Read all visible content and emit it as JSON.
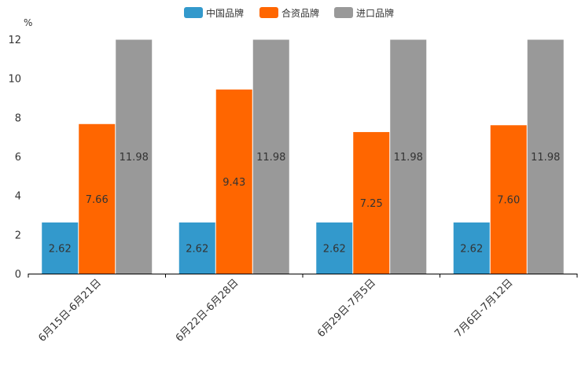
{
  "chart_data": {
    "type": "bar",
    "title": "",
    "xlabel": "",
    "ylabel": "%",
    "ylim": [
      0,
      12
    ],
    "yticks": [
      "0",
      "2",
      "4",
      "6",
      "8",
      "10",
      "12"
    ],
    "categories": [
      "6月15日-6月21日",
      "6月22日-6月28日",
      "6月29日-7月5日",
      "7月6日-7月12日"
    ],
    "series": [
      {
        "name": "中国品牌",
        "color": "#3399cc",
        "values": [
          2.62,
          2.62,
          2.62,
          2.62
        ],
        "labels": [
          "2.62",
          "2.62",
          "2.62",
          "2.62"
        ]
      },
      {
        "name": "合资品牌",
        "color": "#ff6600",
        "values": [
          7.66,
          9.43,
          7.25,
          7.6
        ],
        "labels": [
          "7.66",
          "9.43",
          "7.25",
          "7.60"
        ]
      },
      {
        "name": "进口品牌",
        "color": "#999999",
        "values": [
          11.98,
          11.98,
          11.98,
          11.98
        ],
        "labels": [
          "11.98",
          "11.98",
          "11.98",
          "11.98"
        ]
      }
    ],
    "legend_position": "top-center",
    "grid": false
  }
}
